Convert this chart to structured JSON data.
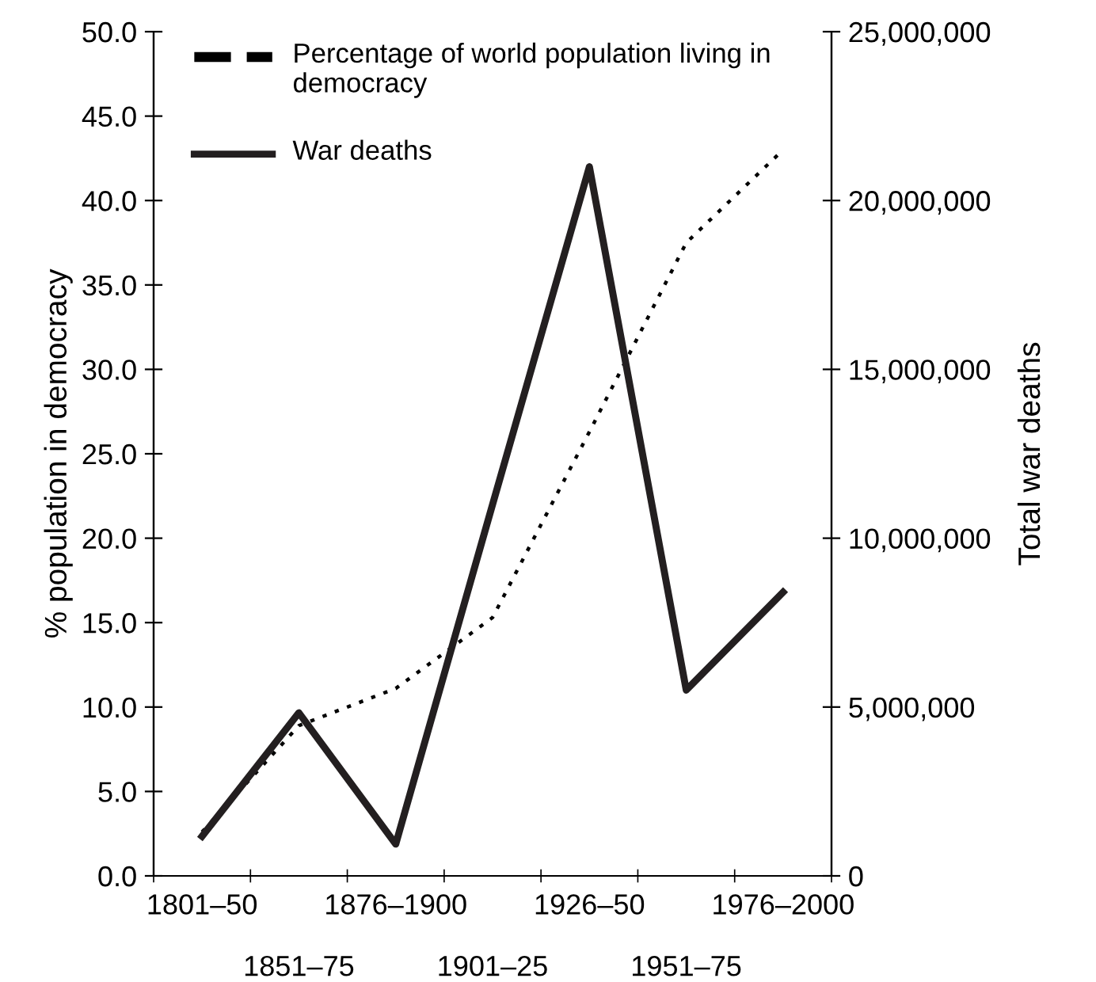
{
  "chart_data": {
    "type": "line",
    "ylabel": "% population in democracy",
    "y2label": "Total war deaths",
    "categories": [
      "1801–50",
      "1851–75",
      "1876–1900",
      "1901–25",
      "1926–50",
      "1951–75",
      "1976–2000"
    ],
    "series": [
      {
        "name": "Percentage of world population living in democracy",
        "color": "#000000",
        "line_style": "dotted",
        "values": [
          2.6,
          8.9,
          11.1,
          15.3,
          26.3,
          37.5,
          43.0
        ]
      },
      {
        "name": "War deaths",
        "color": "#231f20",
        "line_style": "solid",
        "axis": "y2",
        "values": [
          1170000,
          4830000,
          940000,
          11000000,
          21000000,
          5500000,
          8400000
        ]
      }
    ],
    "ylim": [
      0,
      50
    ],
    "yticks": [
      {
        "value": 0,
        "label": "0.0"
      },
      {
        "value": 5,
        "label": "5.0"
      },
      {
        "value": 10,
        "label": "10.0"
      },
      {
        "value": 15,
        "label": "15.0"
      },
      {
        "value": 20,
        "label": "20.0"
      },
      {
        "value": 25,
        "label": "25.0"
      },
      {
        "value": 30,
        "label": "30.0"
      },
      {
        "value": 35,
        "label": "35.0"
      },
      {
        "value": 40,
        "label": "40.0"
      },
      {
        "value": 45,
        "label": "45.0"
      },
      {
        "value": 50,
        "label": "50.0"
      }
    ],
    "y2lim": [
      0,
      25000000
    ],
    "y2ticks": [
      {
        "value": 0,
        "label": "0"
      },
      {
        "value": 5000000,
        "label": "5,000,000"
      },
      {
        "value": 10000000,
        "label": "10,000,000"
      },
      {
        "value": 15000000,
        "label": "15,000,000"
      },
      {
        "value": 20000000,
        "label": "20,000,000"
      },
      {
        "value": 25000000,
        "label": "25,000,000"
      }
    ],
    "legend": "top left",
    "grid": false,
    "marker": "none"
  }
}
